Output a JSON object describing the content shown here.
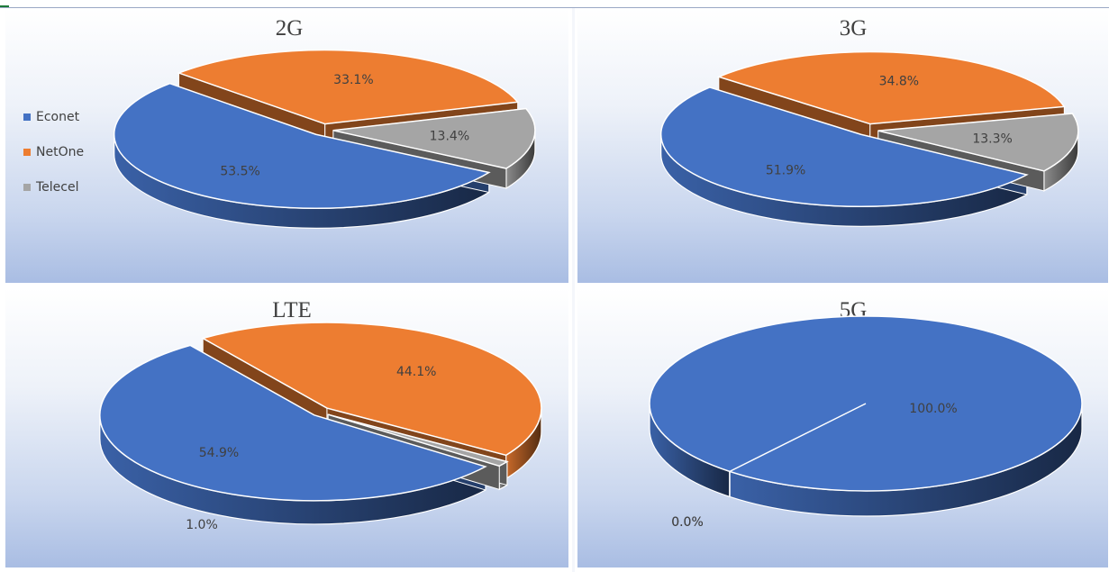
{
  "colors": {
    "Econet": "#4472c4",
    "NetOne": "#ed7d31",
    "Telecel": "#a5a5a5"
  },
  "legend": {
    "placement": "left",
    "items": [
      "Econet",
      "NetOne",
      "Telecel"
    ]
  },
  "chart_data": [
    {
      "type": "pie",
      "title": "2G",
      "categories": [
        "Econet",
        "NetOne",
        "Telecel"
      ],
      "values": [
        53.5,
        33.1,
        13.4
      ],
      "labels": [
        "53.5%",
        "33.1%",
        "13.4%"
      ],
      "style": "3d-exploded"
    },
    {
      "type": "pie",
      "title": "3G",
      "categories": [
        "Econet",
        "NetOne",
        "Telecel"
      ],
      "values": [
        51.9,
        34.8,
        13.3
      ],
      "labels": [
        "51.9%",
        "34.8%",
        "13.3%"
      ],
      "style": "3d-exploded"
    },
    {
      "type": "pie",
      "title": "LTE",
      "categories": [
        "Econet",
        "NetOne",
        "Telecel"
      ],
      "values": [
        54.9,
        44.1,
        1.0
      ],
      "labels": [
        "54.9%",
        "44.1%",
        "1.0%"
      ],
      "style": "3d-exploded"
    },
    {
      "type": "pie",
      "title": "5G",
      "categories": [
        "Econet",
        "NetOne",
        "Telecel"
      ],
      "values": [
        100.0,
        0.0,
        0.0
      ],
      "labels": [
        "100.0%",
        "0.0%",
        "0.0%"
      ],
      "style": "3d"
    }
  ]
}
